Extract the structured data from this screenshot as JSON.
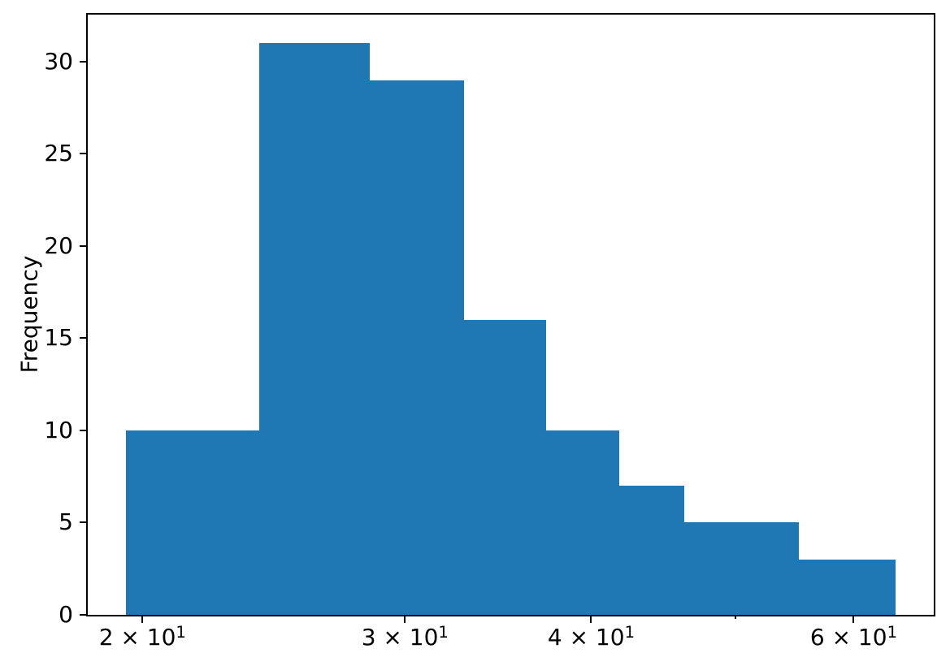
{
  "chart_data": {
    "type": "histogram",
    "x_scale": "log",
    "ylabel": "Frequency",
    "bar_color": "#1f77b4",
    "grid": false,
    "legend": null,
    "xlim": [
      18.38,
      67.9
    ],
    "ylim": [
      0,
      32.55
    ],
    "bars": [
      {
        "x0": 19.5,
        "x1": 23.95,
        "count": 10
      },
      {
        "x0": 23.95,
        "x1": 28.4,
        "count": 31
      },
      {
        "x0": 28.4,
        "x1": 32.85,
        "count": 29
      },
      {
        "x0": 32.85,
        "x1": 37.3,
        "count": 16
      },
      {
        "x0": 37.3,
        "x1": 41.75,
        "count": 10
      },
      {
        "x0": 41.75,
        "x1": 46.2,
        "count": 7
      },
      {
        "x0": 46.2,
        "x1": 55.1,
        "count": 5
      },
      {
        "x0": 55.1,
        "x1": 64.0,
        "count": 3
      }
    ],
    "xticks_major": [
      {
        "value": 20,
        "label_base": "2 × 10",
        "label_exp": "1"
      },
      {
        "value": 30,
        "label_base": "3 × 10",
        "label_exp": "1"
      },
      {
        "value": 40,
        "label_base": "4 × 10",
        "label_exp": "1"
      },
      {
        "value": 60,
        "label_base": "6 × 10",
        "label_exp": "1"
      }
    ],
    "xticks_minor": [
      50
    ],
    "yticks": [
      0,
      5,
      10,
      15,
      20,
      25,
      30
    ]
  }
}
